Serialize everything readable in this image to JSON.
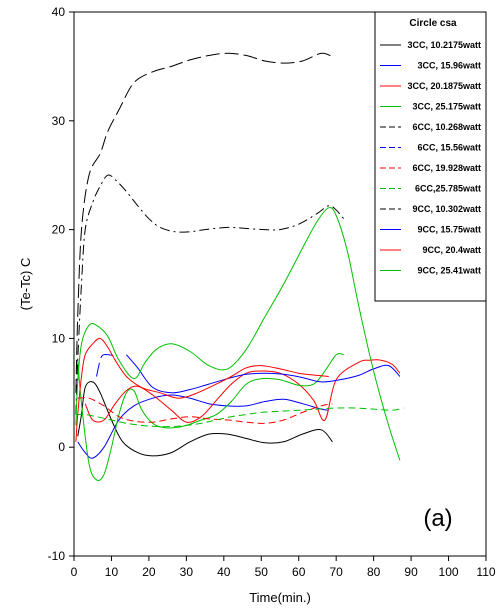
{
  "chart_data": {
    "type": "line",
    "title": "",
    "xlabel": "Time(min.)",
    "ylabel": "(Te-Tc) C",
    "xlim": [
      0,
      110
    ],
    "ylim": [
      -10,
      40
    ],
    "xticks": [
      0,
      10,
      20,
      30,
      40,
      50,
      60,
      70,
      80,
      90,
      100,
      110
    ],
    "yticks": [
      -10,
      0,
      10,
      20,
      30,
      40
    ],
    "grid": false,
    "legend_title": "Circle csa",
    "legend_position": "top-right",
    "panel_label": "(a)",
    "series": [
      {
        "name": "3CC, 10.2175watt",
        "color": "#000000",
        "dash": "solid",
        "points": [
          [
            1,
            1
          ],
          [
            2,
            3
          ],
          [
            3,
            5.5
          ],
          [
            5,
            6
          ],
          [
            7,
            5
          ],
          [
            10,
            2.5
          ],
          [
            13,
            0.5
          ],
          [
            17,
            -0.5
          ],
          [
            21,
            -0.8
          ],
          [
            26,
            -0.5
          ],
          [
            31,
            0.5
          ],
          [
            36,
            1.2
          ],
          [
            41,
            1.2
          ],
          [
            46,
            0.8
          ],
          [
            51,
            0.4
          ],
          [
            56,
            0.5
          ],
          [
            61,
            1.2
          ],
          [
            66,
            1.6
          ],
          [
            69,
            0.5
          ]
        ]
      },
      {
        "name": "3CC, 15.96watt",
        "color": "#0000ff",
        "dash": "solid",
        "points": [
          [
            1,
            0.5
          ],
          [
            3,
            -0.5
          ],
          [
            5,
            -1
          ],
          [
            8,
            0
          ],
          [
            12,
            2.5
          ],
          [
            16,
            3.8
          ],
          [
            21,
            4.5
          ],
          [
            26,
            4.8
          ],
          [
            31,
            4.5
          ],
          [
            36,
            4
          ],
          [
            41,
            3.8
          ],
          [
            46,
            3.8
          ],
          [
            51,
            4.2
          ],
          [
            56,
            4.4
          ],
          [
            61,
            4
          ],
          [
            66,
            3.5
          ],
          [
            68,
            3.4
          ]
        ]
      },
      {
        "name": "3CC, 20.1875watt",
        "color": "#ff0000",
        "dash": "solid",
        "points": [
          [
            3,
            4
          ],
          [
            5,
            2.5
          ],
          [
            8,
            2.5
          ],
          [
            11,
            4
          ],
          [
            14,
            5.2
          ],
          [
            17,
            5.6
          ],
          [
            21,
            4.8
          ],
          [
            26,
            3.4
          ],
          [
            30,
            2.3
          ],
          [
            34,
            2.8
          ],
          [
            38,
            4.3
          ],
          [
            42,
            5.8
          ],
          [
            46,
            6.8
          ],
          [
            50,
            7
          ],
          [
            55,
            6.8
          ],
          [
            60,
            5.8
          ],
          [
            64,
            4.3
          ],
          [
            67,
            2.5
          ],
          [
            70,
            6.2
          ],
          [
            76,
            7.8
          ],
          [
            79,
            8
          ],
          [
            82,
            8
          ],
          [
            85,
            7.6
          ],
          [
            87,
            6.8
          ]
        ]
      },
      {
        "name": "3CC, 25.175watt",
        "color": "#00c000",
        "dash": "solid",
        "points": [
          [
            1,
            8
          ],
          [
            2,
            4
          ],
          [
            4,
            -1.5
          ],
          [
            6,
            -3
          ],
          [
            8,
            -2.5
          ],
          [
            10,
            0
          ],
          [
            12,
            3
          ],
          [
            14,
            5
          ],
          [
            16,
            5.2
          ],
          [
            18,
            3.5
          ],
          [
            21,
            2.2
          ],
          [
            24,
            1.8
          ],
          [
            27,
            1.8
          ],
          [
            30,
            2
          ],
          [
            34,
            2.5
          ],
          [
            38,
            3
          ],
          [
            42,
            4.2
          ],
          [
            46,
            5.8
          ],
          [
            50,
            6.3
          ],
          [
            55,
            6.2
          ],
          [
            60,
            5.7
          ],
          [
            64,
            5.8
          ],
          [
            67,
            7
          ],
          [
            70,
            8.5
          ],
          [
            72,
            8.5
          ]
        ]
      },
      {
        "name": "6CC, 10.268watt",
        "color": "#000000",
        "dash": "long",
        "points": [
          [
            0.5,
            5
          ],
          [
            1,
            12
          ],
          [
            2,
            20
          ],
          [
            4,
            25
          ],
          [
            7,
            27
          ],
          [
            9,
            29
          ],
          [
            12,
            31
          ],
          [
            16,
            33.5
          ],
          [
            21,
            34.5
          ],
          [
            26,
            35
          ],
          [
            31,
            35.6
          ],
          [
            36,
            36
          ],
          [
            41,
            36.2
          ],
          [
            46,
            36
          ],
          [
            51,
            35.5
          ],
          [
            56,
            35.3
          ],
          [
            61,
            35.5
          ],
          [
            66,
            36.2
          ],
          [
            69,
            35.9
          ]
        ]
      },
      {
        "name": "6CC, 15.56watt",
        "color": "#0000ff",
        "dash": "long",
        "points": [
          [
            6,
            6.5
          ],
          [
            7,
            8
          ],
          [
            8,
            8.5
          ],
          [
            11,
            8.4
          ]
        ]
      },
      {
        "name": "6CC, 19.928watt",
        "color": "#ff0000",
        "dash": "dashed",
        "points": [
          [
            1,
            4.5
          ],
          [
            4,
            4.5
          ],
          [
            8,
            3.8
          ],
          [
            12,
            2.8
          ],
          [
            16,
            2.4
          ],
          [
            21,
            2.3
          ],
          [
            26,
            2.6
          ],
          [
            31,
            2.8
          ],
          [
            36,
            2.6
          ],
          [
            41,
            2.5
          ],
          [
            46,
            2.3
          ],
          [
            51,
            2.2
          ],
          [
            56,
            2.5
          ],
          [
            61,
            3.2
          ],
          [
            66,
            3.8
          ],
          [
            69,
            4
          ]
        ]
      },
      {
        "name": "6CC,25.785watt",
        "color": "#00c000",
        "dash": "dashed",
        "points": [
          [
            0.5,
            3
          ],
          [
            3,
            3
          ],
          [
            6,
            2.8
          ],
          [
            10,
            2.5
          ],
          [
            14,
            2.2
          ],
          [
            18,
            2
          ],
          [
            22,
            1.9
          ],
          [
            26,
            1.9
          ],
          [
            30,
            2
          ],
          [
            34,
            2.2
          ],
          [
            38,
            2.5
          ],
          [
            42,
            2.8
          ],
          [
            46,
            3
          ],
          [
            50,
            3.2
          ],
          [
            55,
            3.3
          ],
          [
            60,
            3.4
          ],
          [
            65,
            3.5
          ],
          [
            70,
            3.6
          ],
          [
            75,
            3.6
          ],
          [
            80,
            3.5
          ],
          [
            85,
            3.4
          ],
          [
            88,
            3.6
          ]
        ]
      },
      {
        "name": "9CC, 10.302watt",
        "color": "#000000",
        "dash": "dashdot",
        "points": [
          [
            0.5,
            3
          ],
          [
            1,
            8
          ],
          [
            2,
            15
          ],
          [
            3,
            20
          ],
          [
            5,
            22.5
          ],
          [
            7,
            24
          ],
          [
            9,
            25
          ],
          [
            11,
            24.6
          ],
          [
            14,
            23.5
          ],
          [
            17,
            22.2
          ],
          [
            20,
            21
          ],
          [
            23,
            20.2
          ],
          [
            27,
            19.8
          ],
          [
            31,
            19.8
          ],
          [
            35,
            20
          ],
          [
            41,
            20.2
          ],
          [
            46,
            20.1
          ],
          [
            51,
            20
          ],
          [
            55,
            20
          ],
          [
            60,
            20.5
          ],
          [
            65,
            21.5
          ],
          [
            68,
            22.2
          ],
          [
            70,
            21.8
          ],
          [
            72,
            21
          ]
        ]
      },
      {
        "name": "9CC, 15.75watt",
        "color": "#0000ff",
        "dash": "solid",
        "points": [
          [
            14,
            8.5
          ],
          [
            17,
            7.3
          ],
          [
            21,
            5.5
          ],
          [
            26,
            5
          ],
          [
            31,
            5.3
          ],
          [
            36,
            5.8
          ],
          [
            41,
            6.3
          ],
          [
            46,
            6.7
          ],
          [
            51,
            6.8
          ],
          [
            56,
            6.7
          ],
          [
            61,
            6.4
          ],
          [
            66,
            6
          ],
          [
            71,
            6.2
          ],
          [
            76,
            6.6
          ],
          [
            80,
            7.2
          ],
          [
            84,
            7.5
          ],
          [
            87,
            6.5
          ]
        ]
      },
      {
        "name": "9CC, 20.4watt",
        "color": "#ff0000",
        "dash": "solid",
        "points": [
          [
            0.5,
            0.5
          ],
          [
            1,
            3
          ],
          [
            2,
            6.5
          ],
          [
            3,
            8.5
          ],
          [
            5,
            9.5
          ],
          [
            7,
            10
          ],
          [
            9,
            9.2
          ],
          [
            11,
            8
          ],
          [
            14,
            6.5
          ],
          [
            18,
            5.5
          ],
          [
            23,
            5
          ],
          [
            28,
            4.5
          ],
          [
            33,
            5
          ],
          [
            38,
            5.8
          ],
          [
            42,
            6.5
          ],
          [
            46,
            7.3
          ],
          [
            50,
            7.5
          ],
          [
            55,
            7.2
          ],
          [
            60,
            6.8
          ],
          [
            65,
            6.6
          ],
          [
            68,
            6.5
          ]
        ]
      },
      {
        "name": "9CC, 25.41watt",
        "color": "#00c000",
        "dash": "solid",
        "points": [
          [
            0.5,
            2
          ],
          [
            1,
            6
          ],
          [
            2,
            9.5
          ],
          [
            4,
            11.2
          ],
          [
            6,
            11.2
          ],
          [
            9,
            10.2
          ],
          [
            12,
            8
          ],
          [
            16,
            6.3
          ],
          [
            19,
            7.8
          ],
          [
            22,
            9
          ],
          [
            26,
            9.5
          ],
          [
            31,
            8.8
          ],
          [
            36,
            7.5
          ],
          [
            41,
            7.2
          ],
          [
            46,
            9
          ],
          [
            51,
            12
          ],
          [
            56,
            15
          ],
          [
            61,
            18.3
          ],
          [
            65,
            20.8
          ],
          [
            68,
            22
          ],
          [
            70,
            21.3
          ],
          [
            73,
            18
          ],
          [
            76,
            13
          ],
          [
            80,
            7
          ],
          [
            84,
            2
          ],
          [
            87,
            -1.2
          ]
        ]
      }
    ]
  }
}
